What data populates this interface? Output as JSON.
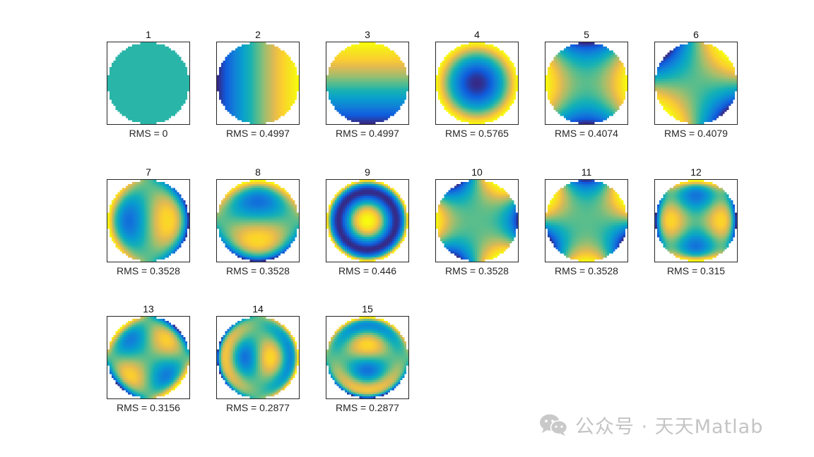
{
  "chart_data": {
    "type": "heatmap",
    "colormap": "parula",
    "layout": "3 rows x 6 columns",
    "panels": [
      {
        "title": "1",
        "rms_label": "RMS = 0",
        "rms": 0,
        "mode": "piston"
      },
      {
        "title": "2",
        "rms_label": "RMS = 0.4997",
        "rms": 0.4997,
        "mode": "tilt-x"
      },
      {
        "title": "3",
        "rms_label": "RMS = 0.4997",
        "rms": 0.4997,
        "mode": "tilt-y"
      },
      {
        "title": "4",
        "rms_label": "RMS = 0.5765",
        "rms": 0.5765,
        "mode": "defocus"
      },
      {
        "title": "5",
        "rms_label": "RMS = 0.4074",
        "rms": 0.4074,
        "mode": "astig-0"
      },
      {
        "title": "6",
        "rms_label": "RMS = 0.4079",
        "rms": 0.4079,
        "mode": "astig-45"
      },
      {
        "title": "7",
        "rms_label": "RMS = 0.3528",
        "rms": 0.3528,
        "mode": "coma-x"
      },
      {
        "title": "8",
        "rms_label": "RMS = 0.3528",
        "rms": 0.3528,
        "mode": "coma-y"
      },
      {
        "title": "9",
        "rms_label": "RMS = 0.446",
        "rms": 0.446,
        "mode": "spherical"
      },
      {
        "title": "10",
        "rms_label": "RMS = 0.3528",
        "rms": 0.3528,
        "mode": "trefoil-x"
      },
      {
        "title": "11",
        "rms_label": "RMS = 0.3528",
        "rms": 0.3528,
        "mode": "trefoil-y"
      },
      {
        "title": "12",
        "rms_label": "RMS = 0.315",
        "rms": 0.315,
        "mode": "sec-astig-0"
      },
      {
        "title": "13",
        "rms_label": "RMS = 0.3156",
        "rms": 0.3156,
        "mode": "sec-astig-45"
      },
      {
        "title": "14",
        "rms_label": "RMS = 0.2877",
        "rms": 0.2877,
        "mode": "sec-coma-x"
      },
      {
        "title": "15",
        "rms_label": "RMS = 0.2877",
        "rms": 0.2877,
        "mode": "sec-coma-y"
      }
    ]
  },
  "watermark": {
    "text": "公众号 · 天天Matlab",
    "icon": "wechat-icon",
    "color": "#c4c4c4"
  }
}
